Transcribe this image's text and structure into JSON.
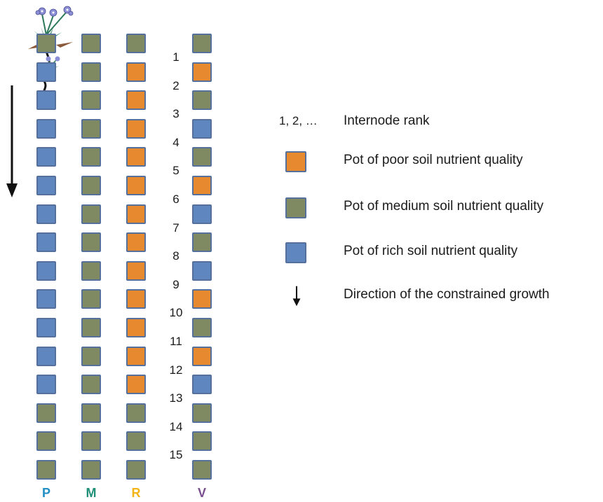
{
  "columns": [
    {
      "label": "P",
      "color": "#1f8fc4",
      "pots": [
        "medium",
        "rich",
        "rich",
        "rich",
        "rich",
        "rich",
        "rich",
        "rich",
        "rich",
        "rich",
        "rich",
        "rich",
        "rich",
        "medium",
        "medium",
        "medium"
      ]
    },
    {
      "label": "M",
      "color": "#1f8f78",
      "pots": [
        "medium",
        "medium",
        "medium",
        "medium",
        "medium",
        "medium",
        "medium",
        "medium",
        "medium",
        "medium",
        "medium",
        "medium",
        "medium",
        "medium",
        "medium",
        "medium"
      ]
    },
    {
      "label": "R",
      "color": "#f2b416",
      "pots": [
        "medium",
        "poor",
        "poor",
        "poor",
        "poor",
        "poor",
        "poor",
        "poor",
        "poor",
        "poor",
        "poor",
        "poor",
        "poor",
        "medium",
        "medium",
        "medium"
      ]
    },
    {
      "label": "V",
      "color": "#7a4f8f",
      "pots": [
        "medium",
        "poor",
        "medium",
        "rich",
        "medium",
        "poor",
        "rich",
        "medium",
        "rich",
        "poor",
        "medium",
        "poor",
        "rich",
        "medium",
        "medium",
        "medium"
      ]
    }
  ],
  "ranks": [
    "1",
    "2",
    "3",
    "4",
    "5",
    "6",
    "7",
    "8",
    "9",
    "10",
    "11",
    "12",
    "13",
    "14",
    "15"
  ],
  "legend": {
    "rank_symbol": "1, 2, …",
    "rank_text": "Internode rank",
    "poor_text": "Pot of poor soil nutrient quality",
    "medium_text": "Pot of medium soil nutrient quality",
    "rich_text": "Pot of rich soil nutrient quality",
    "arrow_text": "Direction of the constrained growth"
  },
  "colors": {
    "poor": "#e7892f",
    "medium": "#7f8a62",
    "rich": "#5f86bf",
    "pot_border": "#55709a"
  },
  "icons": [
    "plant-icon",
    "down-arrow-icon"
  ]
}
